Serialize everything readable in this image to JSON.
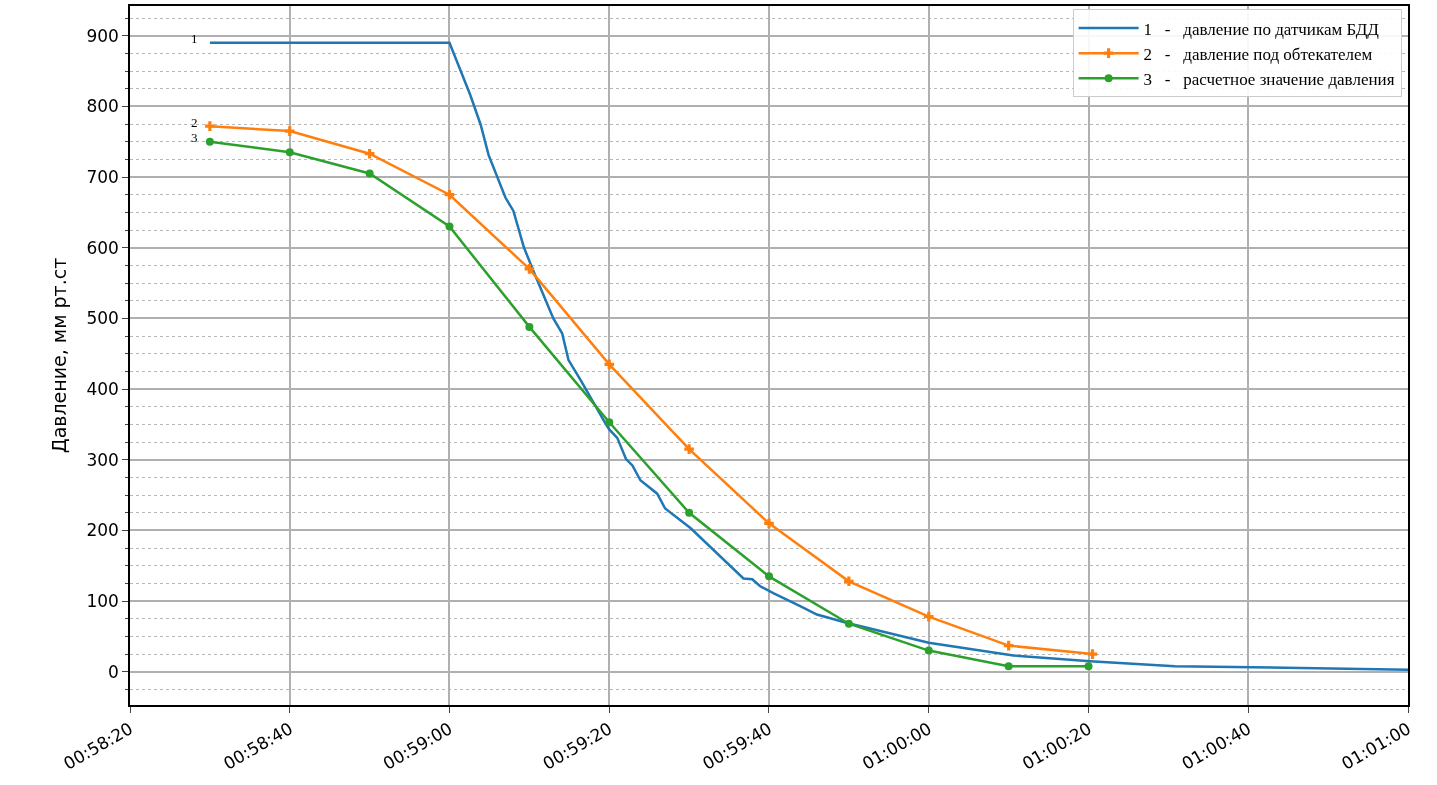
{
  "chart_data": {
    "type": "line",
    "ylabel": "Давление, мм рт.ст",
    "xlim": [
      0.972222,
      1.016667
    ],
    "xticks": [
      {
        "value": 0.972222,
        "label": "00:58:20"
      },
      {
        "value": 0.977778,
        "label": "00:58:40"
      },
      {
        "value": 0.983333,
        "label": "00:59:00"
      },
      {
        "value": 0.988889,
        "label": "00:59:20"
      },
      {
        "value": 0.994444,
        "label": "00:59:40"
      },
      {
        "value": 1.0,
        "label": "01:00:00"
      },
      {
        "value": 1.005556,
        "label": "01:00:20"
      },
      {
        "value": 1.011111,
        "label": "01:00:40"
      },
      {
        "value": 1.016667,
        "label": "01:01:00"
      }
    ],
    "ylim": [
      -47,
      942
    ],
    "yticks": [
      0,
      {
        "value": 25,
        "label": null
      },
      {
        "value": 50,
        "label": null
      },
      {
        "value": 75,
        "label": null
      },
      100,
      {
        "value": 125,
        "label": null
      },
      {
        "value": 150,
        "label": null
      },
      {
        "value": 175,
        "label": null
      },
      200,
      {
        "value": 225,
        "label": null
      },
      {
        "value": 250,
        "label": null
      },
      {
        "value": 275,
        "label": null
      },
      300,
      {
        "value": 325,
        "label": null
      },
      {
        "value": 350,
        "label": null
      },
      {
        "value": 375,
        "label": null
      },
      400,
      {
        "value": 425,
        "label": null
      },
      {
        "value": 450,
        "label": null
      },
      {
        "value": 475,
        "label": null
      },
      500,
      {
        "value": 525,
        "label": null
      },
      {
        "value": 550,
        "label": null
      },
      {
        "value": 575,
        "label": null
      },
      600,
      {
        "value": 625,
        "label": null
      },
      {
        "value": 650,
        "label": null
      },
      {
        "value": 675,
        "label": null
      },
      700,
      {
        "value": 725,
        "label": null
      },
      {
        "value": 750,
        "label": null
      },
      {
        "value": 775,
        "label": null
      },
      800,
      {
        "value": 825,
        "label": null
      },
      {
        "value": 850,
        "label": null
      },
      {
        "value": 875,
        "label": null
      },
      900,
      {
        "value": 925,
        "label": null
      },
      {
        "value": -25,
        "label": null
      }
    ],
    "grid": true,
    "legend": "top right",
    "series": [
      {
        "name": "1   -   давление по датчикам БДД",
        "color": "#1f77b4",
        "marker": "none",
        "x": [
          0.975,
          0.983333,
          0.984056,
          0.984417,
          0.984694,
          0.985278,
          0.985556,
          0.985917,
          0.98625,
          0.986944,
          0.98725,
          0.987472,
          0.987889,
          0.98875,
          0.988889,
          0.989167,
          0.989472,
          0.989694,
          0.989972,
          0.990556,
          0.990833,
          0.991722,
          0.993556,
          0.993861,
          0.994139,
          0.994611,
          0.995528,
          0.996111,
          0.997167,
          1.0,
          1.002944,
          1.005611,
          1.008556,
          1.016667
        ],
        "values": [
          890,
          890,
          816,
          774,
          731,
          671,
          652,
          601,
          567,
          500,
          479,
          441,
          413,
          352,
          343,
          331,
          301,
          292,
          271,
          252,
          231,
          203,
          132,
          131,
          121,
          111,
          93,
          81,
          69,
          41,
          23,
          15,
          8,
          3
        ]
      },
      {
        "name": "2   -   давление под обтекателем",
        "color": "#ff7f0e",
        "marker": "cross",
        "x": [
          0.975,
          0.977778,
          0.980556,
          0.983333,
          0.986111,
          0.988889,
          0.991667,
          0.994444,
          0.997222,
          1.0,
          1.002778,
          1.005694
        ],
        "values": [
          772,
          765,
          733,
          675,
          570,
          435,
          315,
          210,
          128,
          78,
          37,
          25
        ]
      },
      {
        "name": "3   -   расчетное значение давления",
        "color": "#2ca02c",
        "marker": "circle",
        "x": [
          0.975,
          0.977778,
          0.980556,
          0.983333,
          0.986111,
          0.988889,
          0.991667,
          0.994444,
          0.997222,
          1.0,
          1.002778,
          1.005556
        ],
        "values": [
          750,
          735,
          705,
          630,
          488,
          353,
          225,
          135,
          68,
          30,
          8,
          8
        ]
      }
    ],
    "annotations": [
      "1",
      "2",
      "3"
    ]
  }
}
